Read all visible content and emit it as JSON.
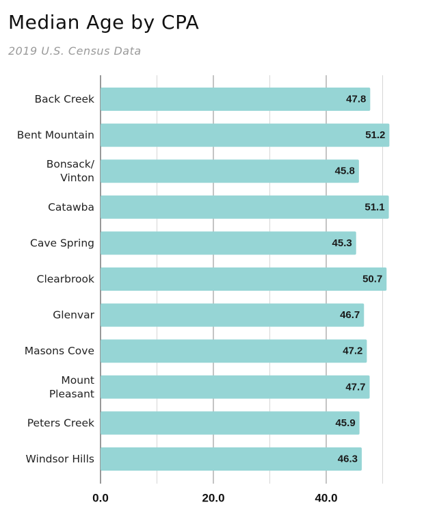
{
  "chart_data": {
    "type": "bar",
    "orientation": "horizontal",
    "title": "Median Age by CPA",
    "subtitle": "2019 U.S. Census Data",
    "xlabel": "",
    "ylabel": "",
    "xlim": [
      0,
      55
    ],
    "x_ticks": [
      {
        "value": 0,
        "label": "0.0"
      },
      {
        "value": 20,
        "label": "20.0"
      },
      {
        "value": 40,
        "label": "40.0"
      }
    ],
    "grid_values": [
      0,
      10,
      20,
      30,
      40,
      50
    ],
    "grid": true,
    "bar_color": "#96d5d5",
    "categories": [
      [
        "Back Creek"
      ],
      [
        "Bent Mountain"
      ],
      [
        "Bonsack/",
        "Vinton"
      ],
      [
        "Catawba"
      ],
      [
        "Cave Spring"
      ],
      [
        "Clearbrook"
      ],
      [
        "Glenvar"
      ],
      [
        "Masons Cove"
      ],
      [
        "Mount",
        "Pleasant"
      ],
      [
        "Peters Creek"
      ],
      [
        "Windsor Hills"
      ]
    ],
    "values": [
      47.8,
      51.2,
      45.8,
      51.1,
      45.3,
      50.7,
      46.7,
      47.2,
      47.7,
      45.9,
      46.3
    ],
    "value_labels": [
      "47.8",
      "51.2",
      "45.8",
      "51.1",
      "45.3",
      "50.7",
      "46.7",
      "47.2",
      "47.7",
      "45.9",
      "46.3"
    ]
  }
}
